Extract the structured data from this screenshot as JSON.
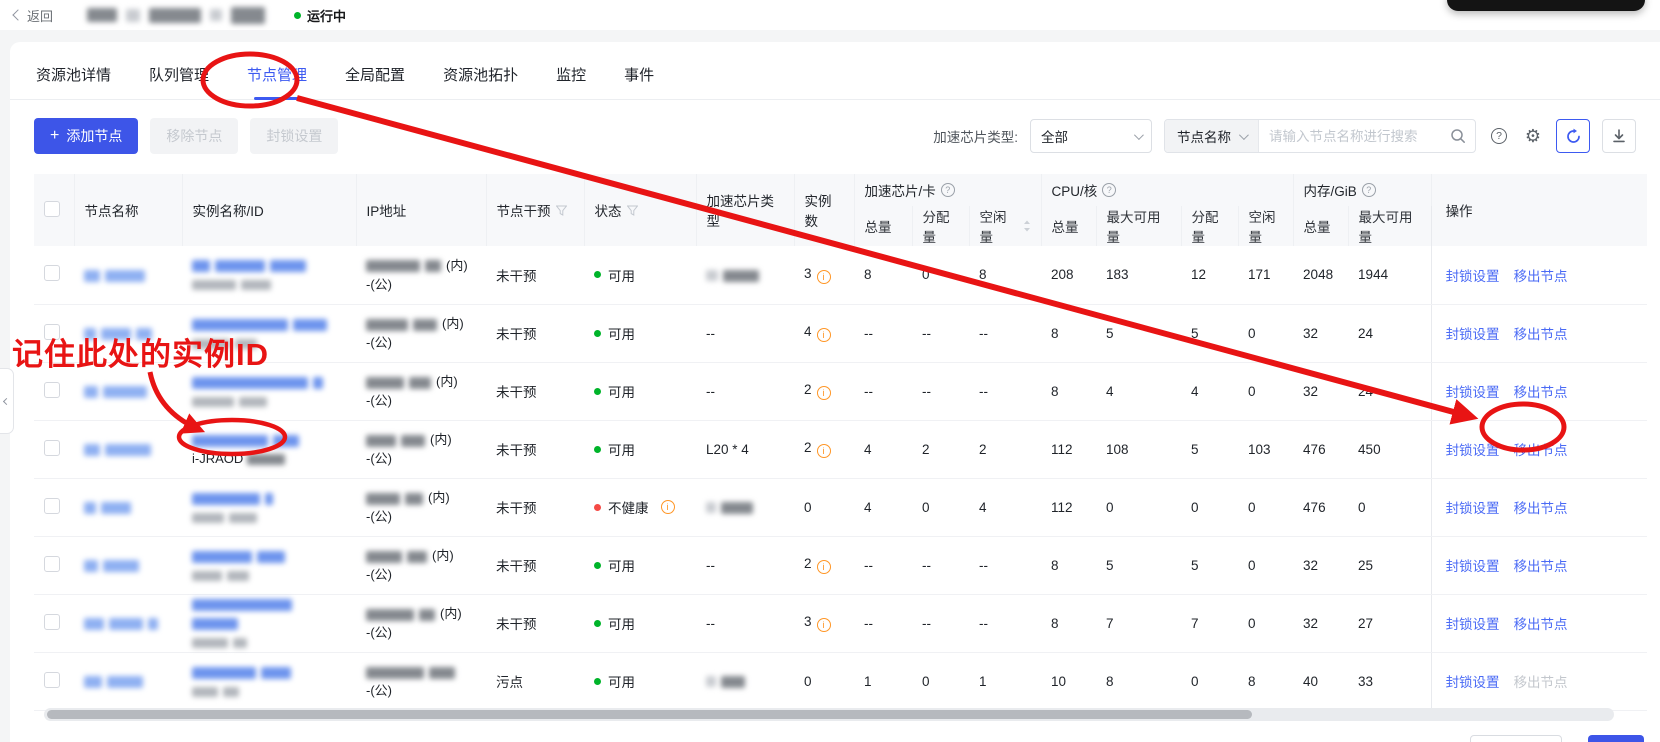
{
  "topbar": {
    "back_label": "返回",
    "run_status": "运行中"
  },
  "tabs": [
    {
      "label": "资源池详情",
      "active": false
    },
    {
      "label": "队列管理",
      "active": false
    },
    {
      "label": "节点管理",
      "active": true
    },
    {
      "label": "全局配置",
      "active": false
    },
    {
      "label": "资源池拓扑",
      "active": false
    },
    {
      "label": "监控",
      "active": false
    },
    {
      "label": "事件",
      "active": false
    }
  ],
  "toolbar": {
    "add_label": "添加节点",
    "remove_label": "移除节点",
    "lock_label": "封锁设置",
    "chip_filter_label": "加速芯片类型:",
    "chip_filter_value": "全部",
    "search_field_value": "节点名称",
    "search_placeholder": "请输入节点名称进行搜索"
  },
  "table": {
    "headers": {
      "node": "节点名称",
      "instance": "实例名称/ID",
      "ip": "IP地址",
      "intervention": "节点干预",
      "status": "状态",
      "chip_type": "加速芯片类型",
      "instances": "实例数",
      "groups": {
        "chip": "加速芯片/卡",
        "cpu": "CPU/核",
        "mem": "内存/GiB"
      },
      "sub": {
        "total": "总量",
        "allocated": "分配量",
        "idle": "空闲量",
        "max_avail": "最大可用量"
      },
      "action": "操作"
    },
    "action_labels": {
      "lock": "封锁设置",
      "remove": "移出节点"
    },
    "rows": [
      {
        "intervention": "未干预",
        "status": "可用",
        "status_type": "ok",
        "status_info": false,
        "chip_type": "blur",
        "instances": "3",
        "instances_info": true,
        "chip": [
          "8",
          "0",
          "8"
        ],
        "cpu": [
          "208",
          "183",
          "12",
          "171"
        ],
        "mem": [
          "2048",
          "1944"
        ],
        "id_visible": "",
        "ip_in": "(内)",
        "ip_pub": "-(公)",
        "remove_disabled": false
      },
      {
        "intervention": "未干预",
        "status": "可用",
        "status_type": "ok",
        "status_info": false,
        "chip_type": "--",
        "instances": "4",
        "instances_info": true,
        "chip": [
          "--",
          "--",
          "--"
        ],
        "cpu": [
          "8",
          "5",
          "5",
          "0"
        ],
        "mem": [
          "32",
          "24"
        ],
        "id_visible": "",
        "ip_in": "(内)",
        "ip_pub": "-(公)",
        "remove_disabled": false
      },
      {
        "intervention": "未干预",
        "status": "可用",
        "status_type": "ok",
        "status_info": false,
        "chip_type": "--",
        "instances": "2",
        "instances_info": true,
        "chip": [
          "--",
          "--",
          "--"
        ],
        "cpu": [
          "8",
          "4",
          "4",
          "0"
        ],
        "mem": [
          "32",
          "24"
        ],
        "id_visible": "",
        "ip_in": "(内)",
        "ip_pub": "-(公)",
        "remove_disabled": false
      },
      {
        "intervention": "未干预",
        "status": "可用",
        "status_type": "ok",
        "status_info": false,
        "chip_type": "L20 * 4",
        "instances": "2",
        "instances_info": true,
        "chip": [
          "4",
          "2",
          "2"
        ],
        "cpu": [
          "112",
          "108",
          "5",
          "103"
        ],
        "mem": [
          "476",
          "450"
        ],
        "id_visible": "i-JRAOD",
        "ip_in": "(内)",
        "ip_pub": "-(公)",
        "remove_disabled": false
      },
      {
        "intervention": "未干预",
        "status": "不健康",
        "status_type": "bad",
        "status_info": true,
        "chip_type": "blur",
        "instances": "0",
        "instances_info": false,
        "chip": [
          "4",
          "0",
          "4"
        ],
        "cpu": [
          "112",
          "0",
          "0",
          "0"
        ],
        "mem": [
          "476",
          "0"
        ],
        "id_visible": "",
        "ip_in": "(内)",
        "ip_pub": "-(公)",
        "remove_disabled": false
      },
      {
        "intervention": "未干预",
        "status": "可用",
        "status_type": "ok",
        "status_info": false,
        "chip_type": "--",
        "instances": "2",
        "instances_info": true,
        "chip": [
          "--",
          "--",
          "--"
        ],
        "cpu": [
          "8",
          "5",
          "5",
          "0"
        ],
        "mem": [
          "32",
          "25"
        ],
        "id_visible": "",
        "ip_in": "(内)",
        "ip_pub": "-(公)",
        "remove_disabled": false
      },
      {
        "intervention": "未干预",
        "status": "可用",
        "status_type": "ok",
        "status_info": false,
        "chip_type": "--",
        "instances": "3",
        "instances_info": true,
        "chip": [
          "--",
          "--",
          "--"
        ],
        "cpu": [
          "8",
          "7",
          "7",
          "0"
        ],
        "mem": [
          "32",
          "27"
        ],
        "id_visible": "",
        "ip_in": "(内)",
        "ip_pub": "-(公)",
        "remove_disabled": false
      },
      {
        "intervention": "污点",
        "status": "可用",
        "status_type": "ok",
        "status_info": false,
        "chip_type": "blur",
        "instances": "0",
        "instances_info": false,
        "chip": [
          "1",
          "0",
          "1"
        ],
        "cpu": [
          "10",
          "8",
          "0",
          "8"
        ],
        "mem": [
          "40",
          "33"
        ],
        "id_visible": "",
        "ip_in": "",
        "ip_pub": "-(公)",
        "remove_disabled": true
      }
    ]
  },
  "annotations": {
    "note_text": "记住此处的实例ID",
    "annotation_color": "#e81414"
  },
  "colors": {
    "accent_blue": "#3d55e8",
    "link_blue": "#4a6af5",
    "status_green": "#00b42a",
    "status_red": "#f54a45",
    "info_orange": "#ff9626",
    "annotation_red": "#e81414"
  }
}
